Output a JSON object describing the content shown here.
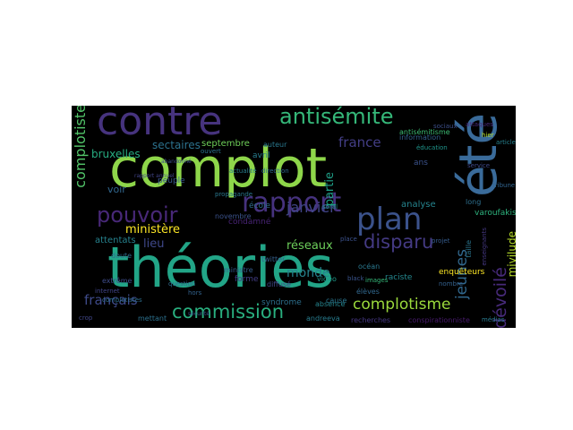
{
  "words": [
    {
      "text": "complot",
      "color": "#8ed64a"
    },
    {
      "text": "théories",
      "color": "#22a587"
    },
    {
      "text": "été",
      "color": "#3a6b9a"
    },
    {
      "text": "contre",
      "color": "#46337e"
    },
    {
      "text": "rapport",
      "color": "#46327e"
    },
    {
      "text": "plan",
      "color": "#3b528b"
    },
    {
      "text": "pouvoir",
      "color": "#482878"
    },
    {
      "text": "antisémite",
      "color": "#35b779"
    },
    {
      "text": "commission",
      "color": "#29af7f"
    },
    {
      "text": "complotiste",
      "color": "#52c569"
    },
    {
      "text": "complotisme",
      "color": "#9bd93c"
    },
    {
      "text": "disparu",
      "color": "#443a83"
    },
    {
      "text": "français",
      "color": "#3e4a89"
    },
    {
      "text": "france",
      "color": "#433e85"
    },
    {
      "text": "janvier",
      "color": "#404588"
    },
    {
      "text": "dévoilé",
      "color": "#472a7a"
    },
    {
      "text": "jeunes",
      "color": "#31688e"
    },
    {
      "text": "réseaux",
      "color": "#6ccd5a"
    },
    {
      "text": "monde",
      "color": "#26828e"
    },
    {
      "text": "ministère",
      "color": "#fde725"
    },
    {
      "text": "sectaires",
      "color": "#2c728e"
    },
    {
      "text": "partie",
      "color": "#1fa088"
    },
    {
      "text": "lieu",
      "color": "#3f4889"
    },
    {
      "text": "mivilude",
      "color": "#b8de29"
    },
    {
      "text": "voir",
      "color": "#31668e"
    },
    {
      "text": "bruxelles",
      "color": "#27ad81"
    },
    {
      "text": "septembre",
      "color": "#6ece58"
    },
    {
      "text": "novembre",
      "color": "#3b528b"
    },
    {
      "text": "attentats",
      "color": "#26828e"
    },
    {
      "text": "avril",
      "color": "#287d8e"
    },
    {
      "text": "auteur",
      "color": "#2a788e"
    },
    {
      "text": "école",
      "color": "#2f6c8e"
    },
    {
      "text": "condamné",
      "color": "#482475"
    },
    {
      "text": "analyse",
      "color": "#25848e"
    },
    {
      "text": "varoufakis",
      "color": "#2db27d"
    },
    {
      "text": "information",
      "color": "#34608d"
    },
    {
      "text": "éducation",
      "color": "#1f958b"
    },
    {
      "text": "antisémitisme",
      "color": "#3dbc74"
    },
    {
      "text": "soral",
      "color": "#228c8d"
    },
    {
      "text": "twitter",
      "color": "#35608d"
    },
    {
      "text": "ministre",
      "color": "#365d8d"
    },
    {
      "text": "absence",
      "color": "#25858e"
    },
    {
      "text": "cause",
      "color": "#2a768e"
    },
    {
      "text": "andreeva",
      "color": "#287c8e"
    },
    {
      "text": "raciste",
      "color": "#24878e"
    },
    {
      "text": "enquêteurs",
      "color": "#fde725"
    },
    {
      "text": "syndrome",
      "color": "#2d708e"
    },
    {
      "text": "recherches",
      "color": "#453781"
    },
    {
      "text": "conspirationniste",
      "color": "#481b6d"
    },
    {
      "text": "doute",
      "color": "#2e6e8e"
    },
    {
      "text": "peuple",
      "color": "#38588c"
    },
    {
      "text": "forme",
      "color": "#433d84"
    },
    {
      "text": "extrême",
      "color": "#3e4c8a"
    },
    {
      "text": "océan",
      "color": "#2a778e"
    },
    {
      "text": "vidéo",
      "color": "#1f998a"
    },
    {
      "text": "diffusé",
      "color": "#3f4788"
    },
    {
      "text": "mettant",
      "color": "#2c718e"
    },
    {
      "text": "élèves",
      "color": "#31688e"
    },
    {
      "text": "ans",
      "color": "#3b528b"
    },
    {
      "text": "hier",
      "color": "#b5de2b"
    },
    {
      "text": "long",
      "color": "#2e6f8e"
    },
    {
      "text": "tribune",
      "color": "#32648e"
    },
    {
      "text": "service",
      "color": "#3e4989"
    },
    {
      "text": "projet",
      "color": "#365c8d"
    },
    {
      "text": "nombre",
      "color": "#34618d"
    },
    {
      "text": "enseignants",
      "color": "#453882"
    },
    {
      "text": "taille",
      "color": "#2b758e"
    },
    {
      "text": "complotistes",
      "color": "#2e6e8e"
    },
    {
      "text": "internet",
      "color": "#414487"
    },
    {
      "text": "sociaux",
      "color": "#3c4f8a"
    },
    {
      "text": "article",
      "color": "#26818e"
    },
    {
      "text": "black",
      "color": "#3a548c"
    },
    {
      "text": "images",
      "color": "#35b779"
    },
    {
      "text": "crop",
      "color": "#404688"
    },
    {
      "text": "médias",
      "color": "#297a8e"
    },
    {
      "text": "place",
      "color": "#3b518b"
    },
    {
      "text": "attaques",
      "color": "#482979"
    },
    {
      "text": "hors",
      "color": "#33628d"
    },
    {
      "text": "ouvert",
      "color": "#2c738e"
    },
    {
      "text": "actualité",
      "color": "#287d8e"
    },
    {
      "text": "abandonné",
      "color": "#3d4e8a"
    },
    {
      "text": "direction",
      "color": "#30698e"
    },
    {
      "text": "rapport annuel",
      "color": "#414487"
    },
    {
      "text": "propagande",
      "color": "#2a788e"
    },
    {
      "text": "sécurité",
      "color": "#39568c"
    },
    {
      "text": "question",
      "color": "#2f6b8e"
    }
  ]
}
